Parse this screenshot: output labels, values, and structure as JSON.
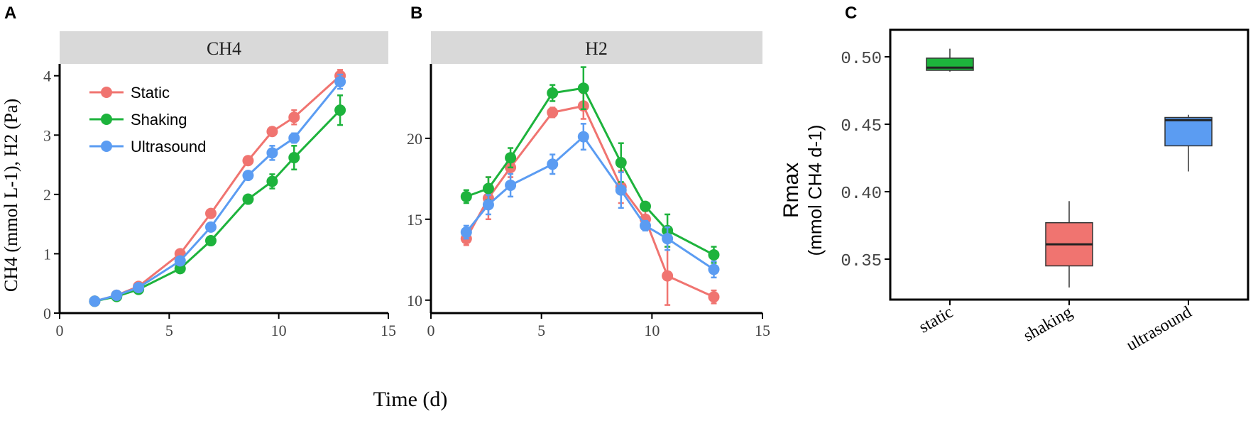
{
  "time_label": "Time (d)",
  "panels": {
    "A": {
      "letter": "A",
      "header": "CH4",
      "ylabel": "CH4 (mmol L-1), H2 (Pa)"
    },
    "B": {
      "letter": "B",
      "header": "H2"
    },
    "C": {
      "letter": "C",
      "ylabel_line1": "Rmax",
      "ylabel_line2": "(mmol CH4 d-1)"
    }
  },
  "chart_data": [
    {
      "id": "A",
      "type": "line",
      "title": "CH4",
      "xlabel": "Time (d)",
      "ylabel": "CH4 (mmol L-1), H2 (Pa)",
      "xlim": [
        0,
        15
      ],
      "ylim": [
        0,
        4.2
      ],
      "xticks": [
        0,
        5,
        10,
        15
      ],
      "yticks": [
        0,
        1,
        2,
        3,
        4
      ],
      "legend": "top-left",
      "x": [
        1.6,
        2.6,
        3.6,
        5.5,
        6.9,
        8.6,
        9.7,
        10.7,
        12.8
      ],
      "series": [
        {
          "name": "Static",
          "color": "#f07470",
          "values": [
            0.2,
            0.3,
            0.45,
            1.0,
            1.68,
            2.57,
            3.06,
            3.3,
            4.0
          ],
          "errors": [
            0.03,
            0.03,
            0.04,
            0.05,
            0.06,
            0.07,
            0.07,
            0.12,
            0.1
          ]
        },
        {
          "name": "Shaking",
          "color": "#1db33c",
          "values": [
            0.2,
            0.28,
            0.4,
            0.75,
            1.22,
            1.92,
            2.22,
            2.62,
            3.42
          ],
          "errors": [
            0.03,
            0.03,
            0.04,
            0.05,
            0.05,
            0.06,
            0.12,
            0.2,
            0.25
          ]
        },
        {
          "name": "Ultrasound",
          "color": "#5b9cf2",
          "values": [
            0.2,
            0.3,
            0.43,
            0.88,
            1.45,
            2.32,
            2.7,
            2.95,
            3.9
          ],
          "errors": [
            0.03,
            0.03,
            0.04,
            0.05,
            0.06,
            0.07,
            0.12,
            0.08,
            0.12
          ]
        }
      ]
    },
    {
      "id": "B",
      "type": "line",
      "title": "H2",
      "xlabel": "Time (d)",
      "ylabel": "",
      "xlim": [
        0,
        15
      ],
      "ylim": [
        9.2,
        24.6
      ],
      "xticks": [
        0,
        5,
        10,
        15
      ],
      "yticks": [
        10,
        15,
        20
      ],
      "x": [
        1.6,
        2.6,
        3.6,
        5.5,
        6.9,
        8.6,
        9.7,
        10.7,
        12.8
      ],
      "series": [
        {
          "name": "Static",
          "color": "#f07470",
          "values": [
            13.8,
            16.3,
            18.2,
            21.6,
            22.0,
            17.0,
            15.0,
            11.5,
            10.2
          ],
          "errors": [
            0.4,
            1.3,
            0.6,
            0.3,
            0.8,
            1.0,
            0.5,
            1.8,
            0.4
          ]
        },
        {
          "name": "Shaking",
          "color": "#1db33c",
          "values": [
            16.4,
            16.9,
            18.8,
            22.8,
            23.1,
            18.5,
            15.8,
            14.3,
            12.8
          ],
          "errors": [
            0.4,
            0.7,
            0.6,
            0.5,
            1.3,
            1.2,
            0.2,
            1.0,
            0.5
          ]
        },
        {
          "name": "Ultrasound",
          "color": "#5b9cf2",
          "values": [
            14.2,
            15.9,
            17.1,
            18.4,
            20.1,
            16.8,
            14.6,
            13.8,
            11.9
          ],
          "errors": [
            0.4,
            0.6,
            0.7,
            0.6,
            0.8,
            1.1,
            0.3,
            0.7,
            0.5
          ]
        }
      ]
    },
    {
      "id": "C",
      "type": "box",
      "ylabel": "Rmax (mmol CH4 d-1)",
      "ylim": [
        0.32,
        0.52
      ],
      "yticks": [
        0.35,
        0.4,
        0.45,
        0.5
      ],
      "ytick_labels": [
        "0.35",
        "0.40",
        "0.45",
        "0.50"
      ],
      "categories": [
        "static",
        "shaking",
        "ultrasound"
      ],
      "boxes": [
        {
          "name": "static",
          "color": "#1db33c",
          "min": 0.489,
          "q1": 0.49,
          "median": 0.492,
          "q3": 0.499,
          "max": 0.506
        },
        {
          "name": "shaking",
          "color": "#f07470",
          "min": 0.329,
          "q1": 0.345,
          "median": 0.361,
          "q3": 0.377,
          "max": 0.393
        },
        {
          "name": "ultrasound",
          "color": "#5b9cf2",
          "min": 0.415,
          "q1": 0.434,
          "median": 0.453,
          "q3": 0.455,
          "max": 0.457
        }
      ]
    }
  ]
}
